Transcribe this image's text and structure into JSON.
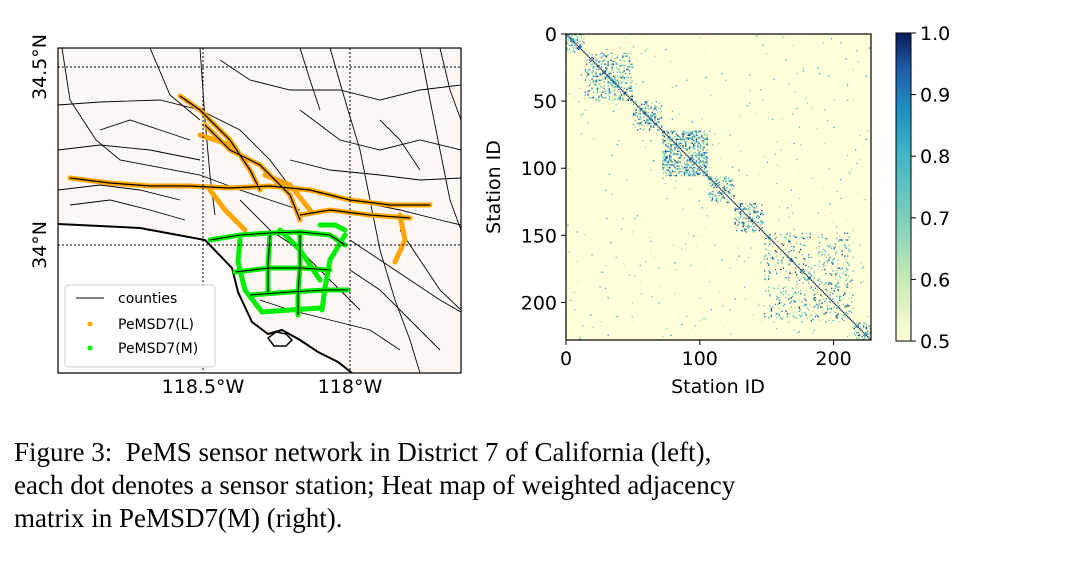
{
  "figure": {
    "caption_lines": [
      "Figure 3:  PeMS sensor network in District 7 of California (left),",
      "each dot denotes a sensor station; Heat map of weighted adjacency",
      "matrix in PeMSD7(M) (right)."
    ]
  },
  "colors": {
    "land": "#fdf7f4",
    "county_line": "#000000",
    "pemsd7_l": "#ffa500",
    "pemsd7_m": "#00ee00",
    "heat_low": "#ffffd9",
    "heat_high": "#081d58"
  },
  "map": {
    "x_ticks": [
      "118.5°W",
      "118°W"
    ],
    "y_ticks": [
      "34.5°N",
      "34°N"
    ],
    "legend": [
      "counties",
      "PeMSD7(L)",
      "PeMSD7(M)"
    ]
  },
  "chart_data": {
    "type": "heatmap",
    "title": "",
    "xlabel": "Station ID",
    "ylabel": "Station ID",
    "x_ticks": [
      0,
      100,
      200
    ],
    "y_ticks": [
      0,
      50,
      100,
      150,
      200
    ],
    "xlim": [
      0,
      228
    ],
    "ylim": [
      228,
      0
    ],
    "colorbar": {
      "min": 0.5,
      "max": 1.0,
      "ticks": [
        "1.0",
        "0.9",
        "0.8",
        "0.7",
        "0.6",
        "0.5"
      ]
    },
    "blocks": [
      {
        "from": 0,
        "to": 14,
        "density": 0.35
      },
      {
        "from": 14,
        "to": 50,
        "density": 0.3
      },
      {
        "from": 50,
        "to": 72,
        "density": 0.3
      },
      {
        "from": 72,
        "to": 106,
        "density": 0.45
      },
      {
        "from": 106,
        "to": 126,
        "density": 0.35
      },
      {
        "from": 126,
        "to": 148,
        "density": 0.3
      },
      {
        "from": 148,
        "to": 215,
        "density": 0.12
      },
      {
        "from": 215,
        "to": 228,
        "density": 0.4
      }
    ]
  }
}
